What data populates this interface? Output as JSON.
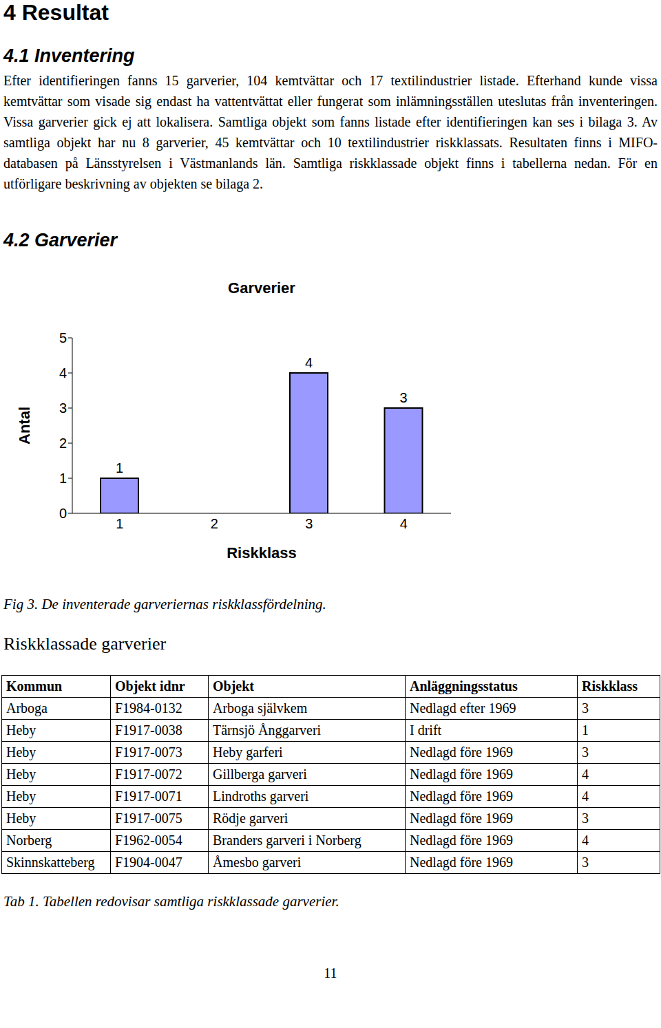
{
  "heading": "4 Resultat",
  "section_1": {
    "title": "4.1 Inventering",
    "text": "Efter identifieringen fanns 15 garverier, 104 kemtvättar och 17 textilindustrier listade. Efterhand kunde vissa kemtvättar som visade sig endast ha vattentvättat eller fungerat som inlämningsställen uteslutas från inventeringen. Vissa garverier gick ej att lokalisera. Samtliga objekt som fanns listade efter identifieringen kan ses i bilaga 3. Av samtliga objekt har nu 8 garverier, 45 kemtvättar och 10 textilindustrier riskklassats. Resultaten finns i MIFO-databasen på Länsstyrelsen i Västmanlands län. Samtliga riskklassade objekt finns i tabellerna nedan. För en utförligare beskrivning av objekten se bilaga 2."
  },
  "section_2": {
    "title": "4.2 Garverier"
  },
  "chart_data": {
    "type": "bar",
    "title": "Garverier",
    "x_label": "Riskklass",
    "y_label": "Antal",
    "categories": [
      "1",
      "2",
      "3",
      "4"
    ],
    "values": [
      1,
      null,
      4,
      3
    ],
    "color": "#9999ff",
    "ylim": [
      0,
      5
    ],
    "yticks": [
      0,
      1,
      2,
      3,
      4,
      5
    ],
    "grid": false,
    "data_labels": true
  },
  "figure_caption": "Fig 3. De inventerade garveriernas riskklassfördelning.",
  "table": {
    "title": "Riskklassade garverier",
    "columns": [
      "Kommun",
      "Objekt idnr",
      "Objekt",
      "Anläggningsstatus",
      "Riskklass"
    ],
    "rows": [
      [
        "Arboga",
        "F1984-0132",
        "Arboga självkem",
        "Nedlagd efter 1969",
        3
      ],
      [
        "Heby",
        "F1917-0038",
        "Tärnsjö Ånggarveri",
        "I drift",
        1
      ],
      [
        "Heby",
        "F1917-0073",
        "Heby garferi",
        "Nedlagd före 1969",
        3
      ],
      [
        "Heby",
        "F1917-0072",
        "Gillberga garveri",
        "Nedlagd före 1969",
        4
      ],
      [
        "Heby",
        "F1917-0071",
        "Lindroths garveri",
        "Nedlagd före 1969",
        4
      ],
      [
        "Heby",
        "F1917-0075",
        "Rödje garveri",
        "Nedlagd före 1969",
        3
      ],
      [
        "Norberg",
        "F1962-0054",
        "Branders garveri i Norberg",
        "Nedlagd före 1969",
        4
      ],
      [
        "Skinnskatteberg",
        "F1904-0047",
        "Åmesbo garveri",
        "Nedlagd före 1969",
        3
      ]
    ],
    "caption": "Tab 1. Tabellen redovisar samtliga riskklassade garverier."
  },
  "page_number": "11"
}
